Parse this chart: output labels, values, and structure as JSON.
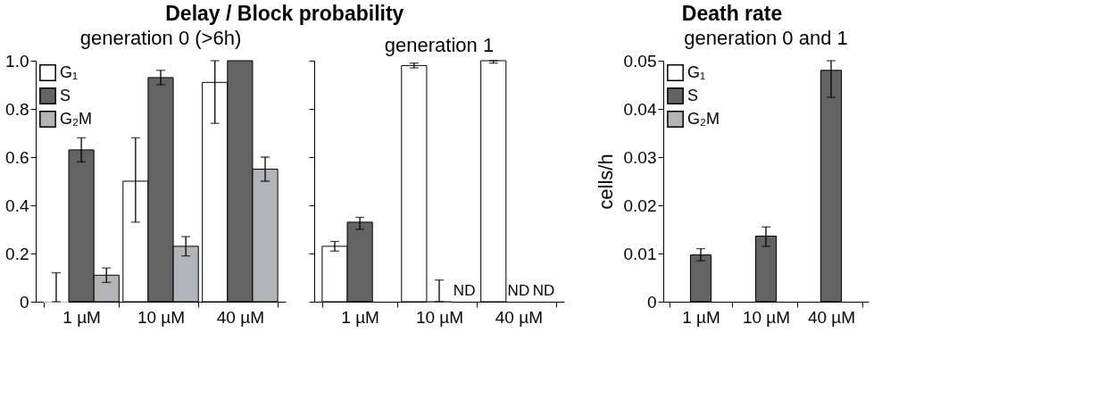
{
  "chart_data": [
    {
      "type": "bar",
      "title": "Delay / Block probability",
      "subtitle": "generation 0 (>6h)",
      "categories": [
        "1 µM",
        "10 µM",
        "40 µM"
      ],
      "series": [
        {
          "name": "G₁",
          "color": "#ffffff",
          "values": [
            0,
            0.5,
            0.91
          ],
          "errors": [
            [
              0,
              0.12
            ],
            [
              0.33,
              0.68
            ],
            [
              0.74,
              1.0
            ]
          ]
        },
        {
          "name": "S",
          "color": "#636363",
          "values": [
            0.63,
            0.93,
            1.0
          ],
          "errors": [
            [
              0.58,
              0.68
            ],
            [
              0.9,
              0.96
            ],
            null
          ]
        },
        {
          "name": "G₂M",
          "color": "#b3b4b6",
          "values": [
            0.11,
            0.23,
            0.55
          ],
          "errors": [
            [
              0.08,
              0.14
            ],
            [
              0.19,
              0.27
            ],
            [
              0.5,
              0.6
            ]
          ]
        }
      ],
      "ylim": [
        0,
        1
      ],
      "yticks": [
        0,
        0.2,
        0.4,
        0.6,
        0.8,
        {
          "value": 1,
          "label": "1.0"
        }
      ],
      "legend": "top left",
      "grid": false
    },
    {
      "type": "bar",
      "subtitle": "generation 1",
      "categories": [
        "1 µM",
        "10 µM",
        "40 µM"
      ],
      "series": [
        {
          "color": "#ffffff",
          "values": [
            0.23,
            0.98,
            1.0
          ],
          "errors": [
            [
              0.21,
              0.25
            ],
            [
              0.97,
              0.99
            ],
            [
              0.99,
              1.0
            ]
          ]
        },
        {
          "color": "#636363",
          "values": [
            0.33,
            0,
            null
          ],
          "errors": [
            [
              0.3,
              0.35
            ],
            [
              0,
              0.09
            ],
            null
          ],
          "value_labels": [
            null,
            null,
            "ND"
          ]
        },
        {
          "color": "#b3b4b6",
          "values": [
            null,
            null,
            null
          ],
          "value_labels": [
            null,
            "ND",
            "ND"
          ]
        }
      ],
      "ylim": [
        0,
        1
      ],
      "yticks": [
        0,
        0.2,
        0.4,
        0.6,
        0.8,
        1
      ],
      "tick_labels": "x",
      "legend": false,
      "grid": false
    },
    {
      "type": "bar",
      "title": "Death rate",
      "subtitle": "generation 0 and 1",
      "ylabel": "cells/h",
      "categories": [
        "1 µM",
        "10 µM",
        "40 µM"
      ],
      "series": [
        {
          "name": "G₁",
          "color": "#ffffff",
          "values": [
            null,
            null,
            null
          ]
        },
        {
          "name": "S",
          "color": "#636363",
          "values": [
            0.0097,
            0.0136,
            0.048
          ],
          "errors": [
            [
              0.0085,
              0.011
            ],
            [
              0.0115,
              0.0155
            ],
            [
              0.0424,
              0.05
            ]
          ]
        },
        {
          "name": "G₂M",
          "color": "#b3b4b6",
          "values": [
            null,
            null,
            null
          ]
        }
      ],
      "ylim": [
        0,
        0.05
      ],
      "yticks": [
        0,
        0.01,
        0.02,
        0.03,
        0.04,
        0.05
      ],
      "legend": "top left",
      "grid": false
    }
  ]
}
